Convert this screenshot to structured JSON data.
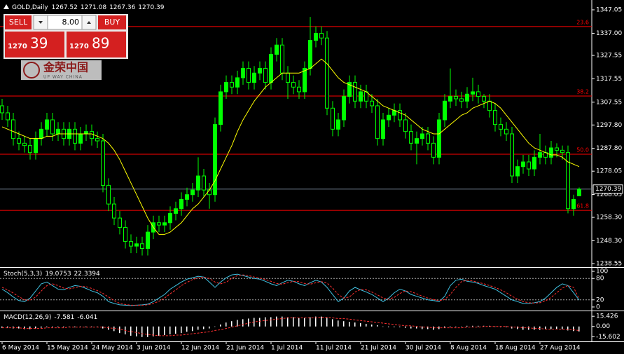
{
  "trade_panel": {
    "sell": "SELL",
    "buy": "BUY",
    "volume": "8.00",
    "bid_big": "1270",
    "bid_small": "39",
    "ask_big": "1270",
    "ask_small": "89"
  },
  "logo": {
    "name": "金荣中国",
    "tagline": "UP WAY CHINA"
  },
  "chart_data": {
    "type": "candlestick",
    "title": "GOLD,Daily",
    "categories": [
      "6 May 2014",
      null,
      null,
      null,
      null,
      null,
      null,
      null,
      "15 May 2014",
      null,
      null,
      null,
      null,
      null,
      null,
      null,
      "24 May 2014",
      null,
      null,
      null,
      null,
      null,
      null,
      null,
      "3 Jun 2014",
      null,
      null,
      null,
      null,
      null,
      null,
      null,
      "12 Jun 2014",
      null,
      null,
      null,
      null,
      null,
      null,
      null,
      "21 Jun 2014",
      null,
      null,
      null,
      null,
      null,
      null,
      null,
      "1 Jul 2014",
      null,
      null,
      null,
      null,
      null,
      null,
      null,
      "11 Jul 2014",
      null,
      null,
      null,
      null,
      null,
      null,
      null,
      "21 Jul 2014",
      null,
      null,
      null,
      null,
      null,
      null,
      null,
      "30 Jul 2014",
      null,
      null,
      null,
      null,
      null,
      null,
      null,
      "8 Aug 2014",
      null,
      null,
      null,
      null,
      null,
      null,
      null,
      "18 Aug 2014",
      null,
      null,
      null,
      null,
      null,
      null,
      null,
      "27 Aug 2014",
      null,
      null,
      null,
      null,
      null,
      null,
      null
    ],
    "open": [
      1306,
      1303,
      1300,
      1292,
      1290,
      1289,
      1286,
      1292,
      1296,
      1300,
      1294,
      1296,
      1292,
      1296,
      1290,
      1294,
      1295,
      1292,
      1291,
      1272,
      1264,
      1258,
      1254,
      1248,
      1246,
      1247,
      1245,
      1252,
      1256,
      1255,
      1256,
      1260,
      1262,
      1266,
      1268,
      1270,
      1276,
      1270,
      1268,
      1298,
      1312,
      1316,
      1314,
      1318,
      1322,
      1316,
      1320,
      1322,
      1316,
      1328,
      1332,
      1320,
      1316,
      1314,
      1312,
      1322,
      1334,
      1337,
      1335,
      1305,
      1296,
      1300,
      1310,
      1316,
      1308,
      1312,
      1308,
      1306,
      1292,
      1300,
      1302,
      1304,
      1300,
      1295,
      1290,
      1292,
      1294,
      1290,
      1284,
      1300,
      1308,
      1310,
      1309,
      1308,
      1311,
      1312,
      1310,
      1308,
      1304,
      1298,
      1296,
      1294,
      1276,
      1280,
      1282,
      1279,
      1284,
      1286,
      1284,
      1288,
      1287,
      1286,
      1262,
      1267.52
    ],
    "high": [
      1309,
      1306,
      1303,
      1295,
      1293,
      1292,
      1295,
      1299,
      1303,
      1303,
      1299,
      1299,
      1299,
      1299,
      1297,
      1298,
      1298,
      1295,
      1294,
      1275,
      1267,
      1261,
      1257,
      1251,
      1250,
      1250,
      1255,
      1259,
      1259,
      1259,
      1263,
      1265,
      1269,
      1271,
      1273,
      1284,
      1279,
      1273,
      1301,
      1315,
      1319,
      1319,
      1321,
      1325,
      1325,
      1323,
      1325,
      1325,
      1331,
      1335,
      1335,
      1323,
      1319,
      1317,
      1325,
      1344,
      1340,
      1340,
      1338,
      1308,
      1303,
      1313,
      1319,
      1319,
      1315,
      1315,
      1311,
      1309,
      1303,
      1305,
      1307,
      1307,
      1303,
      1298,
      1295,
      1297,
      1297,
      1293,
      1303,
      1311,
      1322,
      1313,
      1312,
      1314,
      1318,
      1315,
      1311,
      1311,
      1307,
      1301,
      1299,
      1297,
      1283,
      1285,
      1285,
      1287,
      1294,
      1289,
      1291,
      1290,
      1289,
      1289,
      1268,
      1271.08
    ],
    "low": [
      1300,
      1297,
      1289,
      1287,
      1286,
      1283,
      1283,
      1289,
      1293,
      1291,
      1291,
      1289,
      1289,
      1287,
      1287,
      1291,
      1289,
      1288,
      1269,
      1261,
      1255,
      1251,
      1245,
      1243,
      1243,
      1242,
      1242,
      1249,
      1252,
      1252,
      1253,
      1257,
      1259,
      1263,
      1265,
      1267,
      1267,
      1262,
      1265,
      1295,
      1309,
      1311,
      1311,
      1315,
      1313,
      1313,
      1317,
      1313,
      1313,
      1325,
      1317,
      1309,
      1311,
      1309,
      1309,
      1319,
      1331,
      1332,
      1302,
      1293,
      1293,
      1297,
      1307,
      1305,
      1305,
      1305,
      1303,
      1289,
      1289,
      1297,
      1299,
      1297,
      1292,
      1287,
      1281,
      1289,
      1287,
      1281,
      1281,
      1297,
      1305,
      1306,
      1305,
      1305,
      1308,
      1307,
      1305,
      1301,
      1295,
      1293,
      1291,
      1273,
      1273,
      1277,
      1276,
      1276,
      1281,
      1281,
      1281,
      1284,
      1283,
      1260,
      1259,
      1267.36
    ],
    "close": [
      1303,
      1300,
      1292,
      1290,
      1289,
      1286,
      1292,
      1296,
      1300,
      1294,
      1296,
      1292,
      1296,
      1290,
      1294,
      1295,
      1292,
      1291,
      1272,
      1264,
      1258,
      1254,
      1248,
      1246,
      1247,
      1245,
      1252,
      1256,
      1255,
      1256,
      1260,
      1262,
      1266,
      1268,
      1270,
      1276,
      1270,
      1268,
      1298,
      1312,
      1316,
      1314,
      1318,
      1322,
      1316,
      1320,
      1322,
      1316,
      1328,
      1332,
      1320,
      1316,
      1314,
      1312,
      1322,
      1334,
      1337,
      1335,
      1305,
      1296,
      1300,
      1310,
      1316,
      1308,
      1312,
      1308,
      1306,
      1292,
      1300,
      1302,
      1304,
      1300,
      1295,
      1290,
      1292,
      1294,
      1290,
      1284,
      1300,
      1308,
      1310,
      1309,
      1308,
      1311,
      1312,
      1310,
      1308,
      1304,
      1298,
      1296,
      1294,
      1276,
      1280,
      1282,
      1279,
      1284,
      1286,
      1284,
      1288,
      1287,
      1286,
      1262,
      1266,
      1270.39
    ],
    "ma_values": [
      1297,
      1296,
      1295,
      1294,
      1293,
      1292,
      1292,
      1292,
      1293,
      1293,
      1294,
      1294,
      1294,
      1294,
      1294,
      1294,
      1294,
      1293,
      1292,
      1290,
      1287,
      1283,
      1278,
      1273,
      1268,
      1263,
      1258,
      1254,
      1251,
      1251,
      1252,
      1254,
      1256,
      1259,
      1262,
      1264,
      1267,
      1270,
      1274,
      1279,
      1284,
      1289,
      1295,
      1300,
      1304,
      1308,
      1311,
      1314,
      1316,
      1318,
      1320,
      1320,
      1320,
      1320,
      1321,
      1322,
      1324,
      1326,
      1324,
      1321,
      1318,
      1316,
      1315,
      1314,
      1313,
      1312,
      1310,
      1308,
      1306,
      1305,
      1304,
      1303,
      1302,
      1300,
      1298,
      1296,
      1295,
      1294,
      1294,
      1296,
      1298,
      1300,
      1302,
      1303,
      1305,
      1306,
      1307,
      1308,
      1307,
      1305,
      1302,
      1299,
      1296,
      1293,
      1290,
      1288,
      1287,
      1286,
      1285,
      1285,
      1284,
      1282,
      1281,
      1280
    ],
    "up_color": "#00ff00",
    "down_color": "#000000",
    "wick_color": "#00ff00",
    "ma_color": "#ffff00",
    "fib_color": "#ff0000",
    "bid_color": "#778899",
    "fib_levels": [
      {
        "label": "23.6",
        "value": 1339.9
      },
      {
        "label": "38.2",
        "value": 1310.2
      },
      {
        "label": "50.0",
        "value": 1285.3
      },
      {
        "label": "61.8",
        "value": 1261.3
      }
    ],
    "ylim": [
      1237.04,
      1349.75
    ],
    "yticks": [
      1347.05,
      {
        "value": 1337,
        "label": "1337.00"
      },
      1327.55,
      1317.55,
      1307.55,
      {
        "value": 1297.8,
        "label": "1297.80"
      },
      {
        "value": 1287.8,
        "label": "1287.80"
      },
      1278.05,
      1268.05,
      {
        "value": 1258.3,
        "label": "1258.30"
      },
      {
        "value": 1248.3,
        "label": "1248.30"
      },
      1238.55
    ],
    "stochastic": {
      "label": "Stoch(5,3,3)",
      "main_color": "#40c0e0",
      "signal_color": "#ff3030",
      "main": [
        50,
        40,
        28,
        18,
        15,
        25,
        45,
        65,
        70,
        60,
        50,
        48,
        55,
        60,
        58,
        52,
        45,
        40,
        30,
        15,
        10,
        6,
        5,
        4,
        5,
        6,
        8,
        15,
        25,
        35,
        50,
        60,
        70,
        78,
        82,
        86,
        84,
        70,
        55,
        70,
        82,
        90,
        92,
        88,
        84,
        80,
        78,
        72,
        65,
        60,
        68,
        75,
        72,
        65,
        60,
        68,
        75,
        70,
        55,
        35,
        15,
        25,
        45,
        55,
        48,
        42,
        35,
        25,
        15,
        25,
        40,
        50,
        45,
        35,
        30,
        25,
        20,
        18,
        15,
        30,
        60,
        75,
        78,
        72,
        70,
        66,
        60,
        55,
        50,
        40,
        30,
        20,
        15,
        10,
        10,
        12,
        15,
        25,
        40,
        55,
        65,
        60,
        40,
        19.0753
      ],
      "signal": [
        55,
        48,
        39,
        29,
        20,
        19,
        28,
        45,
        60,
        65,
        60,
        53,
        51,
        54,
        58,
        57,
        52,
        46,
        38,
        28,
        18,
        10,
        7,
        5,
        5,
        5,
        6,
        10,
        16,
        25,
        37,
        48,
        60,
        69,
        77,
        82,
        84,
        80,
        70,
        65,
        69,
        81,
        88,
        90,
        88,
        84,
        81,
        77,
        72,
        66,
        64,
        68,
        72,
        71,
        66,
        64,
        68,
        71,
        67,
        53,
        35,
        25,
        28,
        42,
        49,
        48,
        42,
        34,
        25,
        22,
        27,
        38,
        45,
        43,
        37,
        30,
        25,
        21,
        18,
        21,
        35,
        55,
        71,
        75,
        73,
        69,
        65,
        60,
        55,
        48,
        40,
        30,
        22,
        15,
        12,
        11,
        12,
        17,
        27,
        40,
        53,
        60,
        55,
        22.3394
      ],
      "ylim": [
        -8,
        108
      ],
      "yticks": [
        100,
        80,
        20,
        0
      ],
      "levels": [
        80,
        20
      ]
    },
    "macd": {
      "label": "MACD(12,26,9)",
      "bar_color": "#ffffff",
      "signal_color": "#ff3030",
      "values": [
        -2,
        -2,
        -3,
        -3,
        -4,
        -4,
        -3,
        -2,
        -1,
        -1,
        -1,
        -1,
        0,
        -1,
        -1,
        -1,
        -1,
        -1,
        -3,
        -5,
        -7,
        -10,
        -12,
        -14,
        -15,
        -16,
        -16,
        -15,
        -14,
        -13,
        -12,
        -11,
        -10,
        -8,
        -7,
        -5,
        -4,
        -3,
        0,
        3,
        6,
        8,
        10,
        11,
        12,
        13,
        13,
        14,
        14,
        15,
        15,
        14,
        14,
        13,
        13,
        14,
        15,
        15,
        13,
        11,
        9,
        8,
        7,
        6,
        5,
        4,
        3,
        2,
        0,
        -1,
        -1,
        -1,
        -2,
        -3,
        -3,
        -4,
        -4,
        -5,
        -4,
        -2,
        -1,
        0,
        0,
        1,
        1,
        1,
        1,
        1,
        0,
        -1,
        -1,
        -3,
        -4,
        -5,
        -5,
        -5,
        -5,
        -4,
        -4,
        -4,
        -4,
        -6,
        -7,
        -7.581
      ],
      "signal": [
        -2,
        -2,
        -2,
        -2,
        -3,
        -3,
        -3,
        -3,
        -2,
        -2,
        -2,
        -2,
        -1,
        -1,
        -1,
        -1,
        -1,
        -1,
        -1,
        -2,
        -3,
        -4,
        -6,
        -8,
        -9,
        -11,
        -12,
        -13,
        -14,
        -14,
        -14,
        -13,
        -13,
        -12,
        -11,
        -10,
        -9,
        -8,
        -6,
        -5,
        -3,
        -1,
        1,
        3,
        5,
        7,
        8,
        9,
        10,
        11,
        12,
        13,
        13,
        13,
        13,
        13,
        13,
        14,
        14,
        13,
        12,
        12,
        11,
        10,
        9,
        8,
        7,
        6,
        5,
        4,
        3,
        2,
        1,
        1,
        0,
        -1,
        -1,
        -2,
        -2,
        -2,
        -2,
        -2,
        -2,
        -1,
        -1,
        -1,
        0,
        0,
        0,
        0,
        0,
        -1,
        -1,
        -2,
        -2,
        -3,
        -3,
        -4,
        -4,
        -4,
        -4,
        -5,
        -5,
        -6.041
      ],
      "ylim": [
        -21.5,
        22
      ],
      "yticks": [
        15.426,
        {
          "value": 0,
          "label": "0.00"
        },
        -15.602
      ]
    }
  }
}
